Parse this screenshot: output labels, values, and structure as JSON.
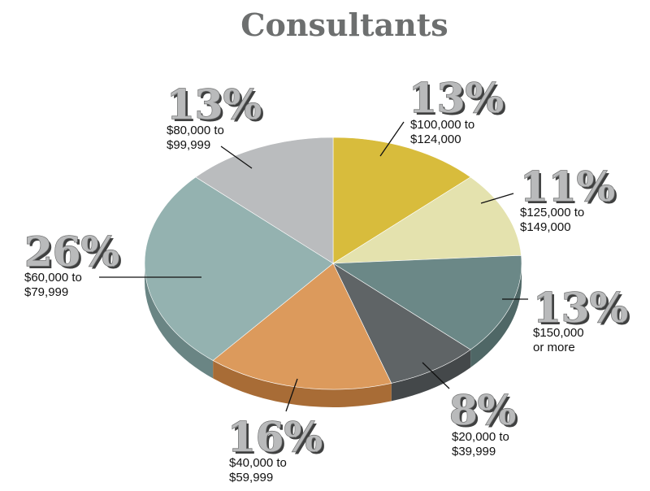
{
  "chart_data": {
    "type": "pie",
    "title": "Consultants",
    "unit": "%",
    "slices": [
      {
        "value": 13,
        "label": "13%",
        "range_lines": [
          "$100,000 to",
          "$124,000"
        ],
        "color": "#d8bc3c",
        "side": "#a68f26"
      },
      {
        "value": 11,
        "label": "11%",
        "range_lines": [
          "$125,000 to",
          "$149,000"
        ],
        "color": "#e4e2ae",
        "side": "#b4b282"
      },
      {
        "value": 13,
        "label": "13%",
        "range_lines": [
          "$150,000",
          "or more"
        ],
        "color": "#6b8887",
        "side": "#4f6766"
      },
      {
        "value": 8,
        "label": "8%",
        "range_lines": [
          "$20,000 to",
          "$39,999"
        ],
        "color": "#5f6466",
        "side": "#44484a"
      },
      {
        "value": 16,
        "label": "16%",
        "range_lines": [
          "$40,000 to",
          "$59,999"
        ],
        "color": "#dc9a5c",
        "side": "#a86c36"
      },
      {
        "value": 26,
        "label": "26%",
        "range_lines": [
          "$60,000 to",
          "$79,999"
        ],
        "color": "#94b2b0",
        "side": "#6a8584"
      },
      {
        "value": 13,
        "label": "13%",
        "range_lines": [
          "$80,000 to",
          "$99,999"
        ],
        "color": "#babcbe",
        "side": "#8e9092"
      }
    ]
  }
}
